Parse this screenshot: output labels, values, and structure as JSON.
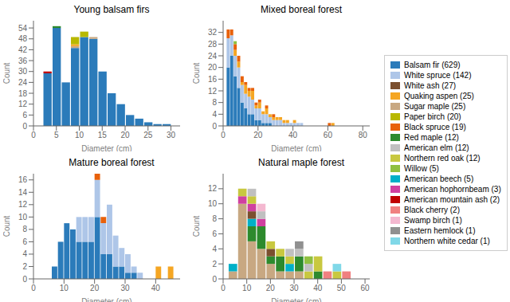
{
  "chart_data": [
    {
      "type": "bar",
      "stacked": true,
      "title": "Young balsam firs",
      "x_label": "Diameter (cm)",
      "y_label": "Count",
      "bins": [
        2,
        4,
        6,
        8,
        10,
        12,
        14,
        16,
        18,
        20,
        22,
        24,
        26,
        28,
        30
      ],
      "xlim": [
        0,
        32
      ],
      "ylim": [
        0,
        58
      ],
      "xticks": [
        0,
        5,
        10,
        15,
        20,
        25,
        30
      ],
      "yticks": [
        0,
        6,
        12,
        18,
        24,
        30,
        36,
        42,
        48,
        54
      ],
      "series": [
        {
          "name": "Balsam fir (629)",
          "color": "#2b7bba",
          "values": [
            29,
            54,
            24,
            43,
            49,
            48,
            30,
            18,
            12,
            6,
            4,
            2,
            1,
            1
          ]
        },
        {
          "name": "American mountain ash (2)",
          "color": "#c00000",
          "values": [
            1,
            0,
            0,
            0,
            0,
            0,
            0,
            0,
            0,
            0,
            0,
            0,
            0,
            0
          ]
        },
        {
          "name": "Red maple (12)",
          "color": "#2d8a2d",
          "values": [
            0,
            1,
            0,
            0,
            0,
            0,
            0,
            0,
            0,
            0,
            0,
            0,
            0,
            0
          ]
        },
        {
          "name": "Sugar maple (25)",
          "color": "#c8a882",
          "values": [
            0,
            0,
            0,
            1,
            0,
            1,
            0,
            0,
            0,
            0,
            0,
            0,
            0,
            0
          ]
        },
        {
          "name": "Quaking aspen (25)",
          "color": "#f5a623",
          "values": [
            0,
            0,
            0,
            1,
            0,
            0,
            0,
            0,
            0,
            0,
            0,
            0,
            0,
            0
          ]
        },
        {
          "name": "Paper birch (20)",
          "color": "#b8b800",
          "values": [
            0,
            0,
            0,
            4,
            3,
            0,
            0,
            0,
            0,
            0,
            0,
            0,
            0,
            0
          ]
        }
      ]
    },
    {
      "type": "bar",
      "stacked": true,
      "title": "Mixed boreal forest",
      "x_label": "Diameter (cm)",
      "y_label": "Count",
      "bins": [
        2,
        4,
        6,
        8,
        10,
        12,
        14,
        16,
        18,
        20,
        22,
        24,
        26,
        28,
        30,
        32,
        34,
        36,
        38,
        40,
        42,
        44,
        46,
        48,
        50,
        52,
        54,
        56,
        58,
        60,
        62,
        64,
        66,
        68,
        70,
        72,
        74,
        76,
        78,
        80,
        82
      ],
      "xlim": [
        0,
        84
      ],
      "ylim": [
        0,
        36
      ],
      "xticks": [
        0,
        20,
        40,
        60,
        80
      ],
      "yticks": [
        0,
        4,
        8,
        12,
        16,
        20,
        24,
        28,
        32
      ],
      "series": [
        {
          "name": "Balsam fir (629)",
          "color": "#2b7bba",
          "values": [
            20,
            24,
            17,
            13,
            8,
            6,
            4,
            4,
            2,
            2,
            1,
            1,
            1,
            0,
            0,
            0,
            0,
            0,
            0,
            0,
            0,
            0,
            0,
            0,
            0,
            0,
            0,
            0,
            0,
            0,
            0,
            0,
            0,
            0,
            0,
            0,
            0,
            0,
            0,
            0
          ]
        },
        {
          "name": "White spruce (142)",
          "color": "#aec6e8",
          "values": [
            10,
            7,
            7,
            7,
            6,
            5,
            6,
            5,
            4,
            4,
            3,
            3,
            2,
            2,
            2,
            2,
            1,
            1,
            1,
            1,
            1,
            1,
            0,
            0,
            0,
            0,
            0,
            0,
            0,
            0,
            0,
            0,
            0,
            0,
            0,
            0,
            0,
            0,
            0,
            0
          ]
        },
        {
          "name": "Quaking aspen (25)",
          "color": "#f5a623",
          "values": [
            0,
            0,
            2,
            2,
            1,
            3,
            2,
            3,
            1,
            2,
            1,
            2,
            1,
            1,
            1,
            1,
            1,
            1,
            0,
            1,
            0,
            0,
            0,
            0,
            0,
            0,
            0,
            0,
            0,
            0,
            1,
            0,
            0,
            0,
            0,
            0,
            0,
            0,
            0,
            0
          ]
        },
        {
          "name": "Black spruce (19)",
          "color": "#e8610a",
          "values": [
            3,
            2,
            2,
            2,
            2,
            1,
            1,
            1,
            1,
            1,
            0,
            1,
            0,
            1,
            0,
            0,
            0,
            0,
            0,
            0,
            0,
            0,
            0,
            0,
            0,
            0,
            0,
            0,
            0,
            1,
            0,
            0,
            0,
            0,
            0,
            0,
            0,
            0,
            0,
            0
          ]
        },
        {
          "name": "Willow (5)",
          "color": "#90c040",
          "values": [
            0,
            0,
            1,
            0,
            0,
            0,
            0,
            0,
            0,
            0,
            0,
            0,
            0,
            0,
            0,
            0,
            0,
            0,
            0,
            0,
            0,
            0,
            0,
            0,
            0,
            0,
            0,
            0,
            0,
            0,
            0,
            0,
            0,
            0,
            0,
            0,
            0,
            0,
            0,
            0
          ]
        }
      ]
    },
    {
      "type": "bar",
      "stacked": true,
      "title": "Mature boreal forest",
      "x_label": "Diameter (cm)",
      "y_label": "Count",
      "bins": [
        6,
        8,
        10,
        12,
        14,
        16,
        18,
        20,
        22,
        24,
        26,
        28,
        30,
        32,
        34,
        36,
        38,
        40,
        42,
        44,
        46,
        48
      ],
      "xlim": [
        0,
        48
      ],
      "ylim": [
        0,
        17
      ],
      "xticks": [
        0,
        10,
        20,
        30,
        40
      ],
      "yticks": [
        0,
        2,
        4,
        6,
        8,
        10,
        12,
        14,
        16
      ],
      "series": [
        {
          "name": "Balsam fir (629)",
          "color": "#2b7bba",
          "values": [
            2,
            6,
            9,
            8,
            6,
            6,
            6,
            10,
            4,
            4,
            2,
            2,
            1,
            1,
            0,
            0,
            0,
            0,
            0,
            0,
            0
          ]
        },
        {
          "name": "White spruce (142)",
          "color": "#aec6e8",
          "values": [
            0,
            0,
            0,
            0,
            4,
            4,
            4,
            6,
            5,
            8,
            5,
            3,
            3,
            1,
            1,
            0,
            0,
            0,
            0,
            0,
            0
          ]
        },
        {
          "name": "Black spruce (19)",
          "color": "#e8610a",
          "values": [
            0,
            0,
            0,
            0,
            0,
            0,
            0,
            1,
            1,
            0,
            0,
            0,
            0,
            0,
            0,
            0,
            0,
            0,
            0,
            0,
            0
          ]
        },
        {
          "name": "Quaking aspen (25)",
          "color": "#f5a623",
          "values": [
            0,
            0,
            0,
            0,
            0,
            0,
            0,
            0,
            0,
            0,
            0,
            0,
            0,
            0,
            0,
            0,
            0,
            2,
            0,
            2,
            0
          ]
        }
      ]
    },
    {
      "type": "bar",
      "stacked": true,
      "title": "Natural maple forest",
      "x_label": "Diameter (cm)",
      "y_label": "Count",
      "bins": [
        2,
        6,
        10,
        14,
        18,
        22,
        26,
        30,
        34,
        38,
        42,
        46,
        50,
        54
      ],
      "xlim": [
        0,
        62
      ],
      "ylim": [
        0,
        14
      ],
      "xticks": [
        0,
        10,
        20,
        30,
        40,
        50,
        60
      ],
      "yticks": [
        0,
        2,
        4,
        6,
        8,
        10,
        12
      ],
      "series": [
        {
          "name": "Sugar maple (25)",
          "color": "#c8a882",
          "values": [
            1,
            10,
            5,
            4,
            2,
            1,
            1,
            1,
            0,
            0,
            0,
            0,
            0
          ]
        },
        {
          "name": "Red maple (12)",
          "color": "#2d8a2d",
          "values": [
            0,
            0,
            2,
            3,
            1,
            2,
            0,
            2,
            0,
            1,
            0,
            0,
            0
          ]
        },
        {
          "name": "American beech (5)",
          "color": "#00b0c8",
          "values": [
            1,
            0,
            1,
            0,
            0,
            0,
            1,
            0,
            0,
            0,
            0,
            0,
            0
          ]
        },
        {
          "name": "White ash (27)",
          "color": "#7b4f2e",
          "values": [
            0,
            0,
            1,
            0,
            1,
            0,
            0,
            0,
            0,
            0,
            0,
            0,
            0
          ]
        },
        {
          "name": "American hophornbeam (3)",
          "color": "#d040a0",
          "values": [
            0,
            1,
            1,
            1,
            0,
            0,
            0,
            0,
            0,
            0,
            0,
            0,
            0
          ]
        },
        {
          "name": "Northern red oak (12)",
          "color": "#c8c840",
          "values": [
            0,
            1,
            1,
            0,
            1,
            1,
            1,
            0,
            1,
            2,
            0,
            1,
            0
          ]
        },
        {
          "name": "American elm (12)",
          "color": "#c0c0c0",
          "values": [
            0,
            0,
            1,
            1,
            0,
            0,
            1,
            1,
            1,
            0,
            0,
            0,
            0
          ]
        },
        {
          "name": "Black cherry (2)",
          "color": "#f08080",
          "values": [
            0,
            0,
            0,
            0,
            0,
            0,
            0,
            0,
            0,
            0,
            1,
            0,
            1
          ]
        },
        {
          "name": "Swamp birch (1)",
          "color": "#f4b8d0",
          "values": [
            0,
            0,
            0,
            1,
            0,
            0,
            0,
            0,
            0,
            0,
            0,
            0,
            0
          ]
        },
        {
          "name": "Willow (5)",
          "color": "#90c040",
          "values": [
            0,
            0,
            0,
            0,
            0,
            0,
            0,
            0,
            1,
            0,
            0,
            0,
            0
          ]
        },
        {
          "name": "Eastern hemlock (1)",
          "color": "#909090",
          "values": [
            0,
            0,
            0,
            0,
            0,
            0,
            0,
            1,
            0,
            0,
            0,
            0,
            0
          ]
        },
        {
          "name": "Northern white cedar (1)",
          "color": "#80d8e8",
          "values": [
            0,
            0,
            0,
            0,
            0,
            0,
            0,
            0,
            0,
            0,
            0,
            1,
            0
          ]
        },
        {
          "name": "Paper birch (20)",
          "color": "#b8b800",
          "values": [
            0,
            0,
            0,
            0,
            0,
            0,
            0,
            0,
            0,
            0,
            0,
            0,
            0
          ]
        }
      ]
    }
  ],
  "legend": "right",
  "series": [
    {
      "name": "Balsam fir (629)",
      "color": "#2b7bba"
    },
    {
      "name": "White spruce (142)",
      "color": "#aec6e8"
    },
    {
      "name": "White ash (27)",
      "color": "#7b4f2e"
    },
    {
      "name": "Quaking aspen (25)",
      "color": "#f5a623"
    },
    {
      "name": "Sugar maple (25)",
      "color": "#c8a882"
    },
    {
      "name": "Paper birch (20)",
      "color": "#b8b800"
    },
    {
      "name": "Black spruce (19)",
      "color": "#e8610a"
    },
    {
      "name": "Red maple (12)",
      "color": "#2d8a2d"
    },
    {
      "name": "American elm (12)",
      "color": "#c0c0c0"
    },
    {
      "name": "Northern red oak (12)",
      "color": "#c8c840"
    },
    {
      "name": "Willow (5)",
      "color": "#90c040"
    },
    {
      "name": "American beech (5)",
      "color": "#00b0c8"
    },
    {
      "name": "American hophornbeam (3)",
      "color": "#d040a0"
    },
    {
      "name": "American mountain ash (2)",
      "color": "#c00000"
    },
    {
      "name": "Black cherry (2)",
      "color": "#f08080"
    },
    {
      "name": "Swamp birch (1)",
      "color": "#f4b8d0"
    },
    {
      "name": "Eastern hemlock (1)",
      "color": "#909090"
    },
    {
      "name": "Northern white cedar (1)",
      "color": "#80d8e8"
    }
  ]
}
